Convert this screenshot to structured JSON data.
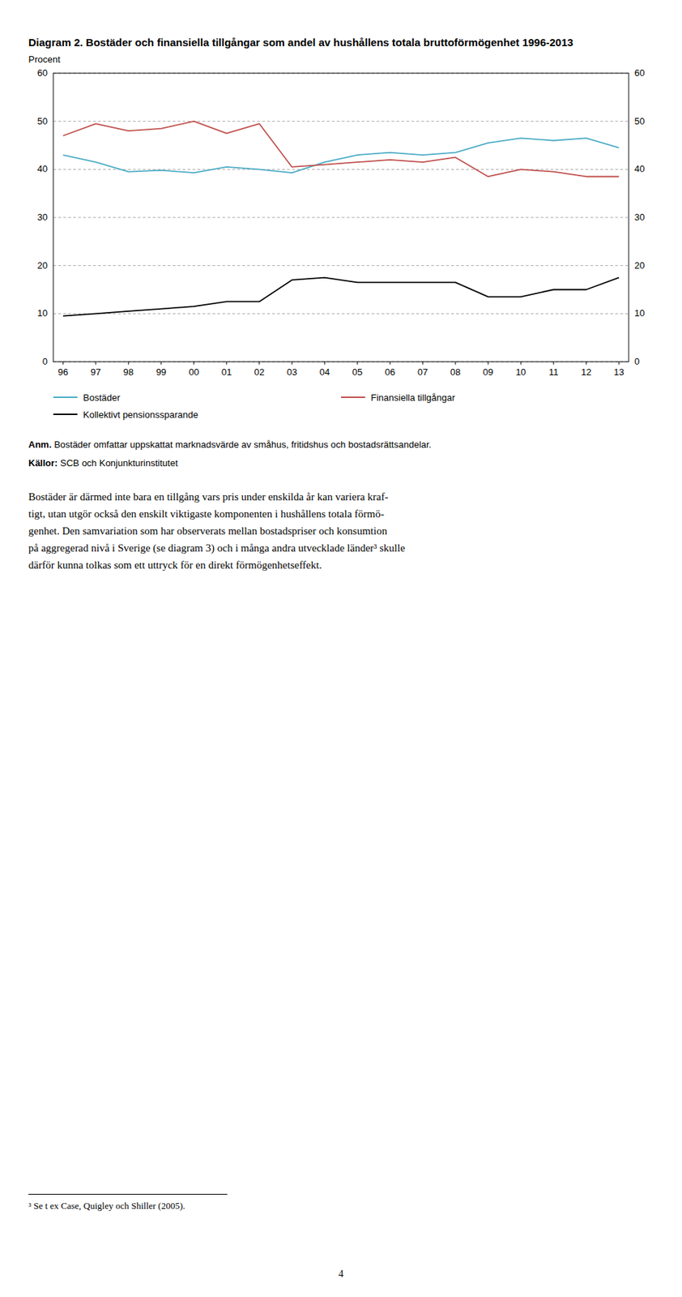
{
  "chart_data": {
    "type": "line",
    "title": "Diagram 2. Bostäder och finansiella tillgångar som andel av hushållens totala bruttoförmögenhet 1996-2013",
    "y_label": "Procent",
    "categories": [
      "96",
      "97",
      "98",
      "99",
      "00",
      "01",
      "02",
      "03",
      "04",
      "05",
      "06",
      "07",
      "08",
      "09",
      "10",
      "11",
      "12",
      "13"
    ],
    "series": [
      {
        "name": "Bostäder",
        "color": "#4bacc6",
        "values": [
          43.0,
          41.5,
          39.5,
          39.8,
          39.3,
          40.5,
          40.0,
          39.3,
          41.5,
          43.0,
          43.5,
          43.0,
          43.5,
          45.5,
          46.5,
          46.0,
          46.5,
          44.5
        ]
      },
      {
        "name": "Finansiella tillgångar",
        "color": "#c0504d",
        "values": [
          47.0,
          49.5,
          48.0,
          48.5,
          50.0,
          47.5,
          49.5,
          40.5,
          41.0,
          41.5,
          42.0,
          41.5,
          42.5,
          38.5,
          40.0,
          39.5,
          38.5,
          38.5
        ]
      },
      {
        "name": "Kollektivt pensionssparande",
        "color": "#000000",
        "values": [
          9.5,
          10.0,
          10.5,
          11.0,
          11.5,
          12.5,
          12.5,
          17.0,
          17.5,
          16.5,
          16.5,
          16.5,
          16.5,
          13.5,
          13.5,
          15.0,
          15.0,
          17.5
        ]
      }
    ],
    "ylim": [
      0,
      60
    ],
    "yticks": [
      0,
      10,
      20,
      30,
      40,
      50,
      60
    ],
    "y2lim": [
      0,
      60
    ],
    "y2ticks": [
      0,
      10,
      20,
      30,
      40,
      50,
      60
    ],
    "grid": true
  },
  "page": {
    "notes": [
      {
        "label": "Anm.",
        "text": "Bostäder omfattar uppskattat marknadsvärde av småhus, fritidshus och bostadsrättsandelar."
      },
      {
        "label": "Källor:",
        "text": "SCB och Konjunkturinstitutet"
      }
    ],
    "body_text": [
      "Bostäder är därmed inte bara en tillgång vars pris under enskilda år kan variera kraf-",
      "tigt, utan utgör också den enskilt viktigaste komponenten i hushållens totala förmö-",
      "genhet. Den samvariation som har observerats mellan bostadspriser och konsumtion",
      "på aggregerad nivå i Sverige (se diagram 3) och i många andra utvecklade länder³ skulle",
      "därför kunna tolkas som ett uttryck för en direkt förmögenhetseffekt."
    ],
    "footnote": "³ Se t ex Case, Quigley och Shiller (2005).",
    "page_number": "4"
  }
}
